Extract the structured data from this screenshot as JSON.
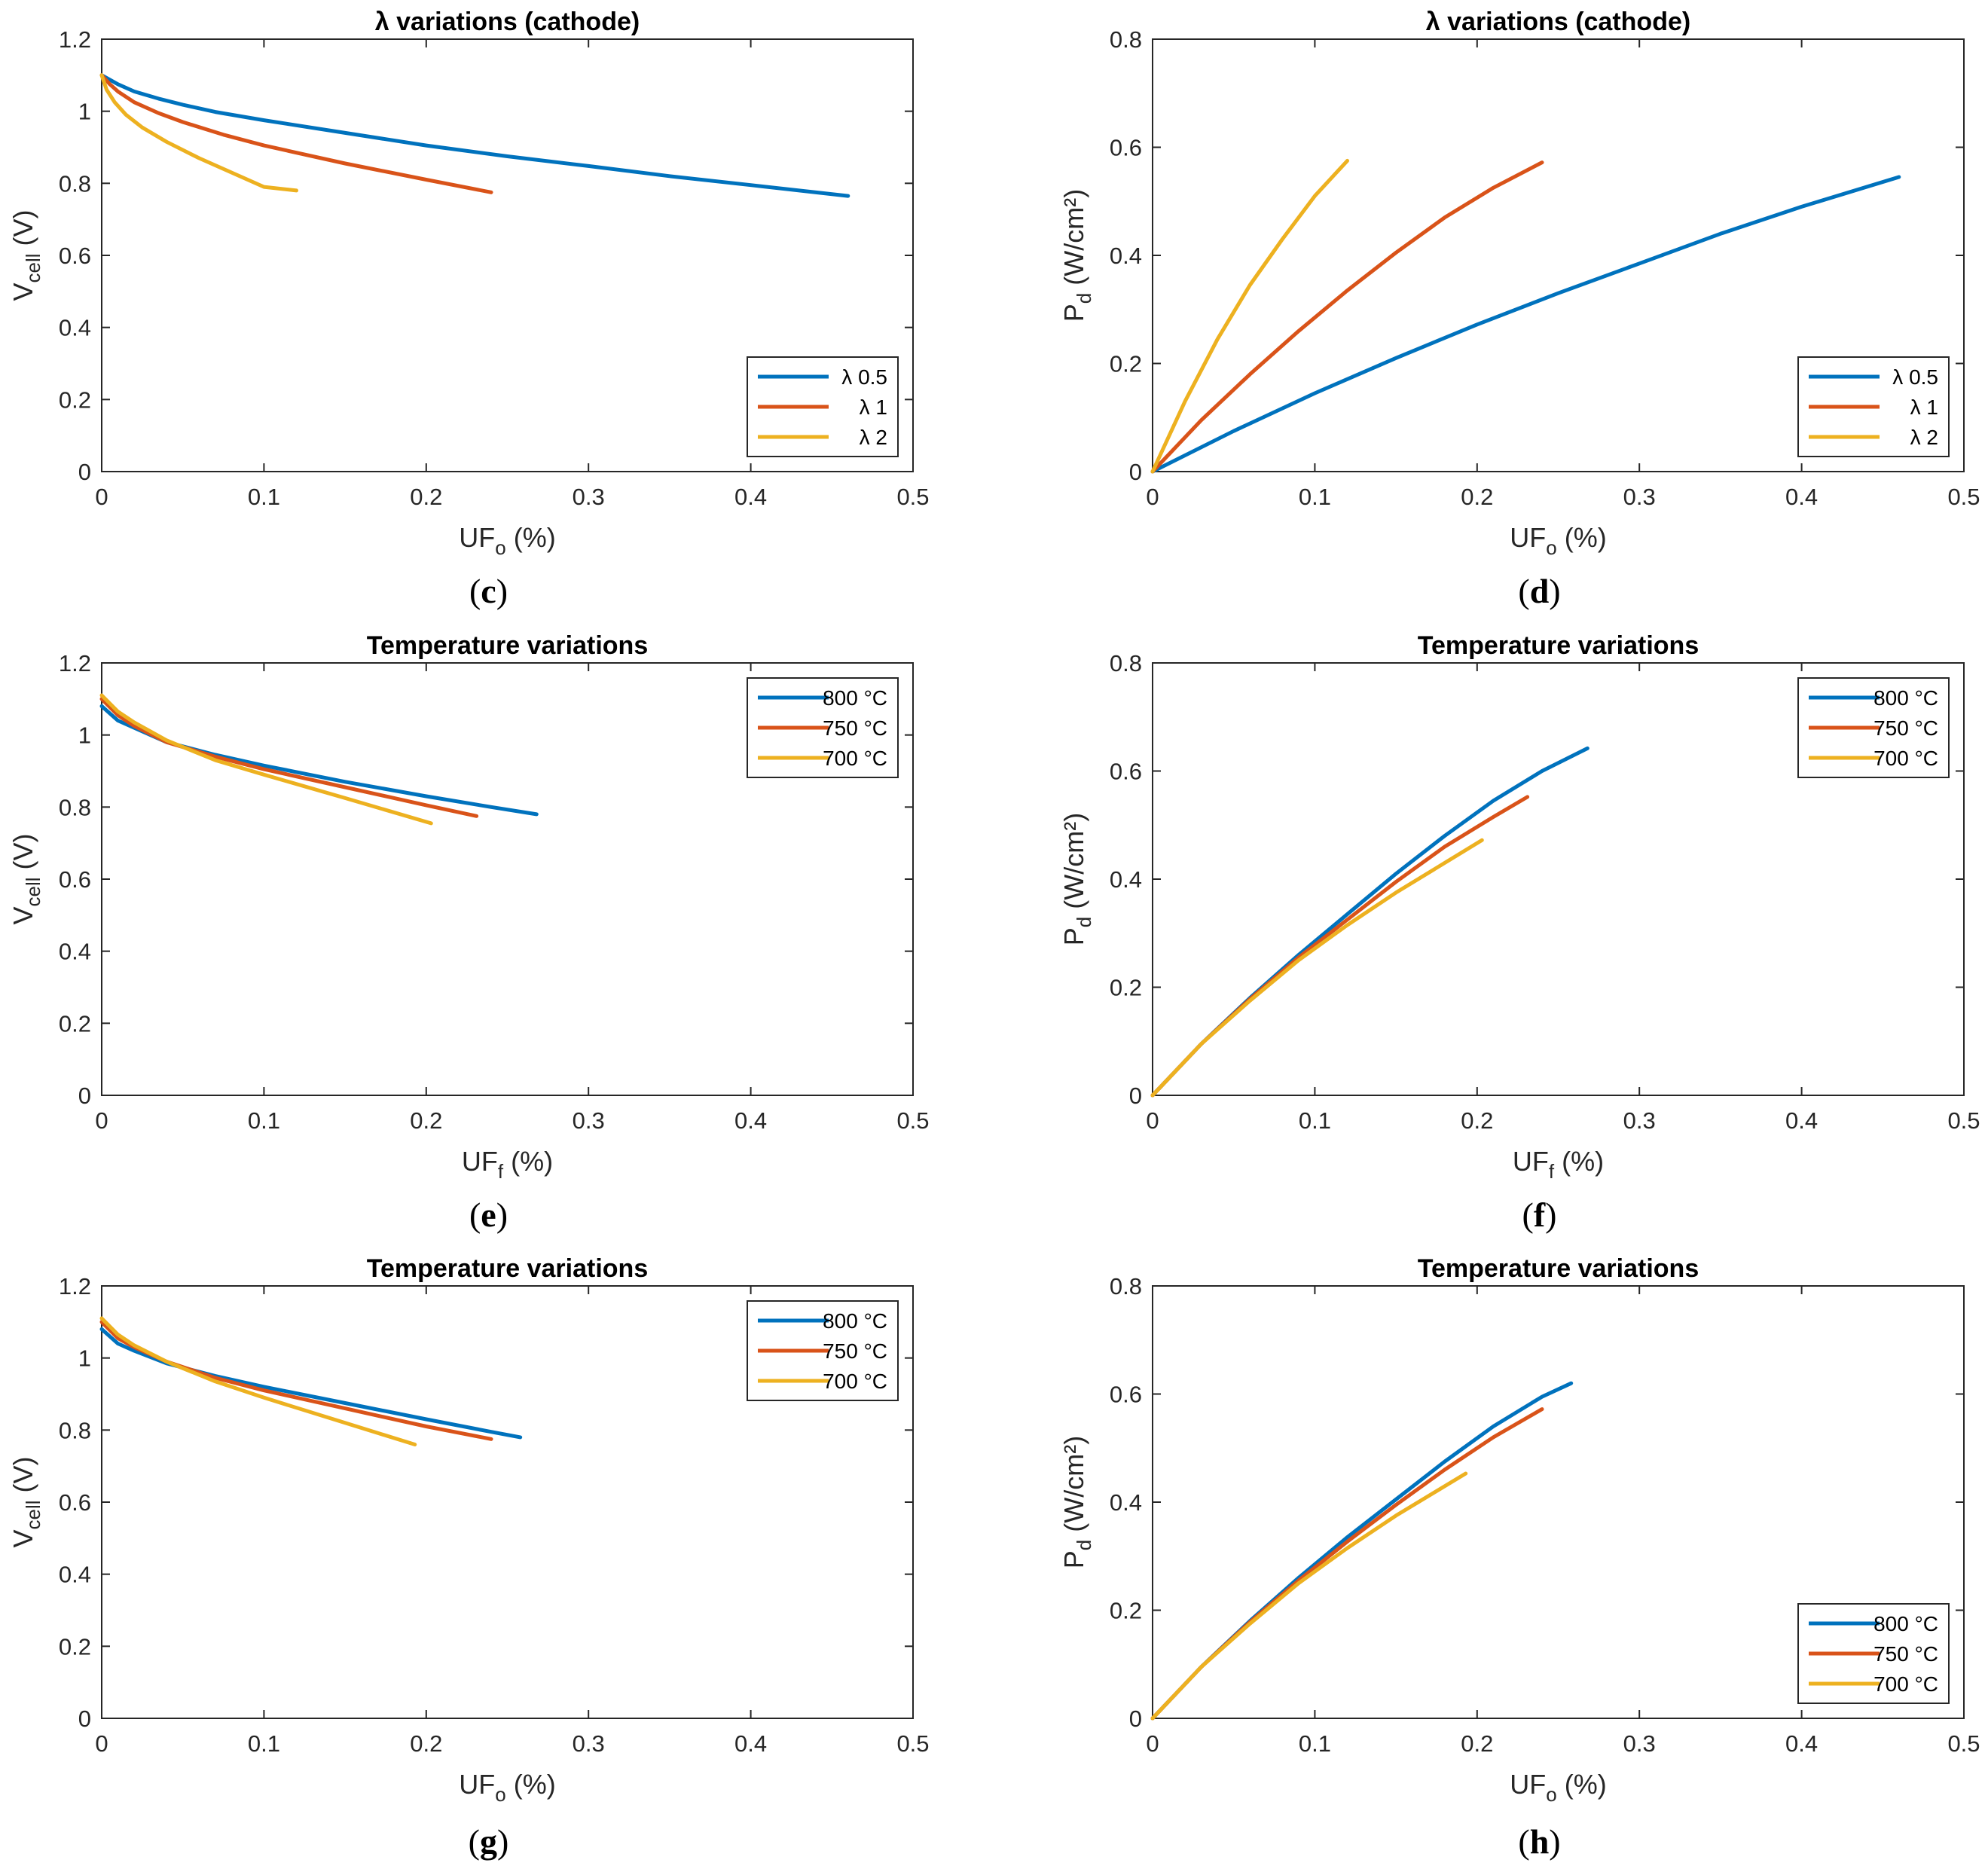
{
  "chart_data": [
    {
      "id": "c",
      "type": "line",
      "panel_label": "c",
      "title": "λ variations (cathode)",
      "xlabel": {
        "main": "UF",
        "sub": "o",
        "unit": " (%)"
      },
      "ylabel": {
        "main": "V",
        "sub": "cell",
        "unit": " (V)"
      },
      "xlim": [
        0,
        0.5
      ],
      "ylim": [
        0,
        1.2
      ],
      "xticks": [
        0,
        0.1,
        0.2,
        0.3,
        0.4,
        0.5
      ],
      "yticks": [
        0,
        0.2,
        0.4,
        0.6,
        0.8,
        1,
        1.2
      ],
      "xticklabels": [
        "0",
        "0.1",
        "0.2",
        "0.3",
        "0.4",
        "0.5"
      ],
      "yticklabels": [
        "0",
        "0.2",
        "0.4",
        "0.6",
        "0.8",
        "1",
        "1.2"
      ],
      "legend_position": "bottom-right",
      "series": [
        {
          "name": "λ 0.5",
          "color": "#0072BD",
          "x": [
            0,
            0.01,
            0.02,
            0.035,
            0.05,
            0.07,
            0.1,
            0.15,
            0.2,
            0.25,
            0.3,
            0.35,
            0.4,
            0.46
          ],
          "y": [
            1.1,
            1.075,
            1.055,
            1.035,
            1.018,
            0.998,
            0.975,
            0.94,
            0.905,
            0.875,
            0.848,
            0.82,
            0.795,
            0.765
          ]
        },
        {
          "name": "λ 1",
          "color": "#D95319",
          "x": [
            0,
            0.005,
            0.01,
            0.02,
            0.035,
            0.05,
            0.075,
            0.1,
            0.15,
            0.2,
            0.24
          ],
          "y": [
            1.1,
            1.075,
            1.055,
            1.025,
            0.995,
            0.97,
            0.935,
            0.905,
            0.855,
            0.81,
            0.775
          ]
        },
        {
          "name": "λ 2",
          "color": "#EDB120",
          "x": [
            0,
            0.003,
            0.008,
            0.015,
            0.025,
            0.04,
            0.06,
            0.08,
            0.1,
            0.12
          ],
          "y": [
            1.1,
            1.06,
            1.025,
            0.99,
            0.955,
            0.915,
            0.87,
            0.83,
            0.79,
            0.78
          ]
        }
      ]
    },
    {
      "id": "d",
      "type": "line",
      "panel_label": "d",
      "title": "λ variations (cathode)",
      "xlabel": {
        "main": "UF",
        "sub": "o",
        "unit": " (%)"
      },
      "ylabel": {
        "main": "P",
        "sub": "d",
        "unit": " (W/cm²)"
      },
      "xlim": [
        0,
        0.5
      ],
      "ylim": [
        0,
        0.8
      ],
      "xticks": [
        0,
        0.1,
        0.2,
        0.3,
        0.4,
        0.5
      ],
      "yticks": [
        0,
        0.2,
        0.4,
        0.6,
        0.8
      ],
      "xticklabels": [
        "0",
        "0.1",
        "0.2",
        "0.3",
        "0.4",
        "0.5"
      ],
      "yticklabels": [
        "0",
        "0.2",
        "0.4",
        "0.6",
        "0.8"
      ],
      "legend_position": "bottom-right",
      "series": [
        {
          "name": "λ 0.5",
          "color": "#0072BD",
          "x": [
            0,
            0.05,
            0.1,
            0.15,
            0.2,
            0.25,
            0.3,
            0.35,
            0.4,
            0.46
          ],
          "y": [
            0,
            0.075,
            0.145,
            0.21,
            0.272,
            0.33,
            0.385,
            0.44,
            0.49,
            0.545
          ]
        },
        {
          "name": "λ 1",
          "color": "#D95319",
          "x": [
            0,
            0.03,
            0.06,
            0.09,
            0.12,
            0.15,
            0.18,
            0.21,
            0.24
          ],
          "y": [
            0,
            0.095,
            0.18,
            0.26,
            0.335,
            0.405,
            0.47,
            0.525,
            0.572
          ]
        },
        {
          "name": "λ 2",
          "color": "#EDB120",
          "x": [
            0,
            0.02,
            0.04,
            0.06,
            0.08,
            0.1,
            0.12
          ],
          "y": [
            0,
            0.13,
            0.245,
            0.345,
            0.43,
            0.51,
            0.575
          ]
        }
      ]
    },
    {
      "id": "e",
      "type": "line",
      "panel_label": "e",
      "title": "Temperature variations",
      "xlabel": {
        "main": "UF",
        "sub": "f",
        "unit": " (%)"
      },
      "ylabel": {
        "main": "V",
        "sub": "cell",
        "unit": " (V)"
      },
      "xlim": [
        0,
        0.5
      ],
      "ylim": [
        0,
        1.2
      ],
      "xticks": [
        0,
        0.1,
        0.2,
        0.3,
        0.4,
        0.5
      ],
      "yticks": [
        0,
        0.2,
        0.4,
        0.6,
        0.8,
        1,
        1.2
      ],
      "xticklabels": [
        "0",
        "0.1",
        "0.2",
        "0.3",
        "0.4",
        "0.5"
      ],
      "yticklabels": [
        "0",
        "0.2",
        "0.4",
        "0.6",
        "0.8",
        "1",
        "1.2"
      ],
      "legend_position": "top-right",
      "series": [
        {
          "name": "800 °C",
          "color": "#0072BD",
          "x": [
            0,
            0.01,
            0.02,
            0.04,
            0.07,
            0.1,
            0.15,
            0.2,
            0.24,
            0.268
          ],
          "y": [
            1.08,
            1.04,
            1.02,
            0.98,
            0.945,
            0.915,
            0.87,
            0.83,
            0.8,
            0.78
          ]
        },
        {
          "name": "750 °C",
          "color": "#D95319",
          "x": [
            0,
            0.01,
            0.02,
            0.04,
            0.07,
            0.1,
            0.15,
            0.2,
            0.231
          ],
          "y": [
            1.1,
            1.055,
            1.025,
            0.98,
            0.94,
            0.905,
            0.855,
            0.805,
            0.775
          ]
        },
        {
          "name": "700 °C",
          "color": "#EDB120",
          "x": [
            0,
            0.01,
            0.02,
            0.04,
            0.07,
            0.1,
            0.15,
            0.203
          ],
          "y": [
            1.11,
            1.065,
            1.035,
            0.985,
            0.93,
            0.89,
            0.825,
            0.755
          ]
        }
      ]
    },
    {
      "id": "f",
      "type": "line",
      "panel_label": "f",
      "title": "Temperature variations",
      "xlabel": {
        "main": "UF",
        "sub": "f",
        "unit": " (%)"
      },
      "ylabel": {
        "main": "P",
        "sub": "d",
        "unit": " (W/cm²)"
      },
      "xlim": [
        0,
        0.5
      ],
      "ylim": [
        0,
        0.8
      ],
      "xticks": [
        0,
        0.1,
        0.2,
        0.3,
        0.4,
        0.5
      ],
      "yticks": [
        0,
        0.2,
        0.4,
        0.6,
        0.8
      ],
      "xticklabels": [
        "0",
        "0.1",
        "0.2",
        "0.3",
        "0.4",
        "0.5"
      ],
      "yticklabels": [
        "0",
        "0.2",
        "0.4",
        "0.6",
        "0.8"
      ],
      "legend_position": "top-right",
      "series": [
        {
          "name": "800 °C",
          "color": "#0072BD",
          "x": [
            0,
            0.03,
            0.06,
            0.09,
            0.12,
            0.15,
            0.18,
            0.21,
            0.24,
            0.268
          ],
          "y": [
            0,
            0.095,
            0.18,
            0.26,
            0.335,
            0.41,
            0.48,
            0.545,
            0.6,
            0.642
          ]
        },
        {
          "name": "750 °C",
          "color": "#D95319",
          "x": [
            0,
            0.03,
            0.06,
            0.09,
            0.12,
            0.15,
            0.18,
            0.21,
            0.231
          ],
          "y": [
            0,
            0.095,
            0.178,
            0.255,
            0.325,
            0.395,
            0.46,
            0.515,
            0.552
          ]
        },
        {
          "name": "700 °C",
          "color": "#EDB120",
          "x": [
            0,
            0.03,
            0.06,
            0.09,
            0.12,
            0.15,
            0.18,
            0.203
          ],
          "y": [
            0,
            0.095,
            0.175,
            0.25,
            0.315,
            0.375,
            0.43,
            0.472
          ]
        }
      ]
    },
    {
      "id": "g",
      "type": "line",
      "panel_label": "g",
      "title": "Temperature variations",
      "xlabel": {
        "main": "UF",
        "sub": "o",
        "unit": " (%)"
      },
      "ylabel": {
        "main": "V",
        "sub": "cell",
        "unit": " (V)"
      },
      "xlim": [
        0,
        0.5
      ],
      "ylim": [
        0,
        1.2
      ],
      "xticks": [
        0,
        0.1,
        0.2,
        0.3,
        0.4,
        0.5
      ],
      "yticks": [
        0,
        0.2,
        0.4,
        0.6,
        0.8,
        1,
        1.2
      ],
      "xticklabels": [
        "0",
        "0.1",
        "0.2",
        "0.3",
        "0.4",
        "0.5"
      ],
      "yticklabels": [
        "0",
        "0.2",
        "0.4",
        "0.6",
        "0.8",
        "1",
        "1.2"
      ],
      "legend_position": "top-right",
      "series": [
        {
          "name": "800 °C",
          "color": "#0072BD",
          "x": [
            0,
            0.01,
            0.02,
            0.04,
            0.07,
            0.1,
            0.15,
            0.2,
            0.24,
            0.258
          ],
          "y": [
            1.08,
            1.04,
            1.02,
            0.985,
            0.95,
            0.92,
            0.875,
            0.83,
            0.795,
            0.78
          ]
        },
        {
          "name": "750 °C",
          "color": "#D95319",
          "x": [
            0,
            0.01,
            0.02,
            0.04,
            0.07,
            0.1,
            0.15,
            0.2,
            0.24
          ],
          "y": [
            1.1,
            1.055,
            1.03,
            0.99,
            0.945,
            0.91,
            0.86,
            0.81,
            0.775
          ]
        },
        {
          "name": "700 °C",
          "color": "#EDB120",
          "x": [
            0,
            0.01,
            0.02,
            0.04,
            0.07,
            0.1,
            0.15,
            0.193
          ],
          "y": [
            1.11,
            1.065,
            1.035,
            0.99,
            0.935,
            0.89,
            0.82,
            0.76
          ]
        }
      ]
    },
    {
      "id": "h",
      "type": "line",
      "panel_label": "h",
      "title": "Temperature variations",
      "xlabel": {
        "main": "UF",
        "sub": "o",
        "unit": " (%)"
      },
      "ylabel": {
        "main": "P",
        "sub": "d",
        "unit": " (W/cm²)"
      },
      "xlim": [
        0,
        0.5
      ],
      "ylim": [
        0,
        0.8
      ],
      "xticks": [
        0,
        0.1,
        0.2,
        0.3,
        0.4,
        0.5
      ],
      "yticks": [
        0,
        0.2,
        0.4,
        0.6,
        0.8
      ],
      "xticklabels": [
        "0",
        "0.1",
        "0.2",
        "0.3",
        "0.4",
        "0.5"
      ],
      "yticklabels": [
        "0",
        "0.2",
        "0.4",
        "0.6",
        "0.8"
      ],
      "legend_position": "bottom-right",
      "series": [
        {
          "name": "800 °C",
          "color": "#0072BD",
          "x": [
            0,
            0.03,
            0.06,
            0.09,
            0.12,
            0.15,
            0.18,
            0.21,
            0.24,
            0.258
          ],
          "y": [
            0,
            0.095,
            0.18,
            0.26,
            0.335,
            0.405,
            0.475,
            0.54,
            0.595,
            0.62
          ]
        },
        {
          "name": "750 °C",
          "color": "#D95319",
          "x": [
            0,
            0.03,
            0.06,
            0.09,
            0.12,
            0.15,
            0.18,
            0.21,
            0.24
          ],
          "y": [
            0,
            0.095,
            0.178,
            0.255,
            0.327,
            0.395,
            0.46,
            0.52,
            0.572
          ]
        },
        {
          "name": "700 °C",
          "color": "#EDB120",
          "x": [
            0,
            0.03,
            0.06,
            0.09,
            0.12,
            0.15,
            0.193
          ],
          "y": [
            0,
            0.095,
            0.175,
            0.25,
            0.315,
            0.375,
            0.453
          ]
        }
      ]
    }
  ]
}
